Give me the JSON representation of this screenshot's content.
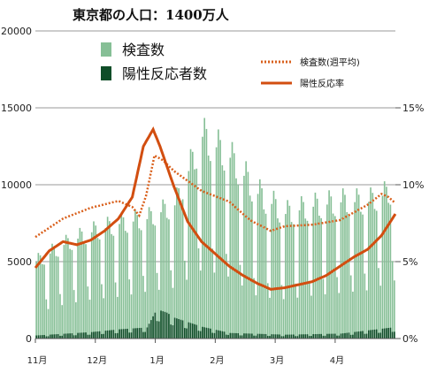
{
  "chart_data": {
    "type": "bar",
    "title": "東京都の人口：1400万人",
    "y_left": {
      "ticks": [
        0,
        5000,
        10000,
        15000,
        20000
      ],
      "labels": [
        "0",
        "5000",
        "10000",
        "15000",
        "20000"
      ],
      "ylim": [
        0,
        20000
      ]
    },
    "y_right": {
      "ticks": [
        0,
        5,
        10,
        15
      ],
      "labels": [
        "0%",
        "5%",
        "10%",
        "15%"
      ],
      "ylim": [
        0,
        20
      ]
    },
    "x_months": [
      "11月",
      "12月",
      "1月",
      "2月",
      "3月",
      "4月"
    ],
    "grid": true,
    "legend_left": [
      "検査数",
      "陽性反応者数"
    ],
    "legend_right": [
      "検査数(週平均)",
      "陽性反応率"
    ],
    "colors": {
      "tests": "#86bf96",
      "positives": "#0f4d28",
      "tests_avg": "#d9601c",
      "positive_rate": "#d24e10"
    },
    "series": [
      {
        "name": "検査数",
        "type": "bar",
        "x_weeks": [
          0,
          2,
          4,
          6,
          8,
          10,
          12,
          14,
          16,
          18,
          20,
          22,
          24,
          26
        ],
        "weekday_values": [
          5500,
          6700,
          7600,
          8200,
          8500,
          9500,
          14500,
          13000,
          10500,
          9000,
          9500,
          9800,
          9800,
          10600
        ],
        "weekend_values": [
          2000,
          2600,
          3000,
          3200,
          3600,
          3900,
          5300,
          4700,
          3200,
          3000,
          3300,
          3500,
          3700,
          4500
        ]
      },
      {
        "name": "陽性反応者数",
        "type": "bar",
        "x_weeks": [
          0,
          4,
          6,
          8,
          8.7,
          9.4,
          10,
          12,
          14,
          18,
          22,
          26
        ],
        "values": [
          200,
          420,
          600,
          720,
          1900,
          1700,
          1350,
          760,
          360,
          250,
          320,
          750
        ]
      },
      {
        "name": "検査数(週平均)",
        "type": "line",
        "x_weeks": [
          0,
          2,
          4,
          6,
          7,
          7.5,
          8,
          8.6,
          9.2,
          10,
          12,
          14,
          15.5,
          17,
          18,
          20,
          22,
          24,
          25,
          25.5,
          26
        ],
        "values": [
          6600,
          7800,
          8500,
          8950,
          8550,
          8000,
          9300,
          11900,
          11600,
          10900,
          9600,
          8900,
          7700,
          7000,
          7300,
          7400,
          7700,
          8700,
          9400,
          9200,
          8800
        ]
      },
      {
        "name": "陽性反応率",
        "type": "line",
        "x_weeks": [
          0,
          1,
          2,
          3,
          4,
          5,
          6,
          7,
          7.8,
          8.5,
          9,
          10,
          11,
          12,
          13,
          14,
          15,
          16,
          17,
          18,
          19,
          20,
          21,
          22,
          23,
          24,
          25,
          26
        ],
        "values": [
          4.6,
          5.7,
          6.3,
          6.1,
          6.4,
          7.0,
          7.8,
          9.2,
          12.5,
          13.6,
          12.5,
          9.9,
          7.6,
          6.3,
          5.5,
          4.7,
          4.1,
          3.6,
          3.2,
          3.3,
          3.5,
          3.7,
          4.1,
          4.7,
          5.3,
          5.8,
          6.7,
          8.1
        ]
      }
    ]
  }
}
